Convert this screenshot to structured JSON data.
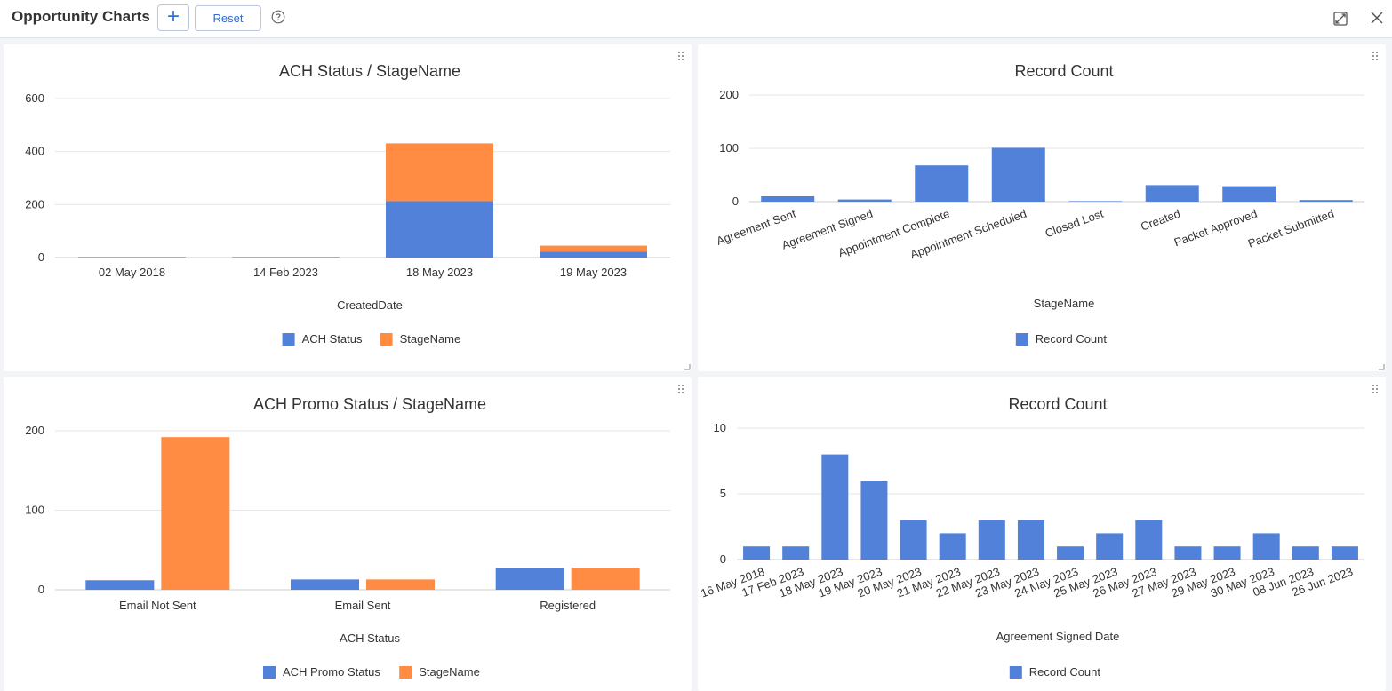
{
  "header": {
    "title": "Opportunity Charts",
    "add_label": "+",
    "reset_label": "Reset",
    "help_icon": "help-circle-icon",
    "expand_icon": "expand-icon",
    "close_icon": "close-icon"
  },
  "colors": {
    "blue": "#5181d8",
    "orange": "#ff8c42",
    "grid": "#e6e6e6",
    "text": "#333333"
  },
  "chart_data": [
    {
      "type": "bar",
      "stacked": true,
      "title": "ACH Status / StageName",
      "xlabel": "CreatedDate",
      "ylabel": "",
      "ylim": [
        0,
        600
      ],
      "yticks": [
        0,
        200,
        400,
        600
      ],
      "categories": [
        "02 May 2018",
        "14 Feb 2023",
        "18 May 2023",
        "19 May 2023"
      ],
      "series": [
        {
          "name": "ACH Status",
          "values": [
            1,
            1,
            213,
            22
          ]
        },
        {
          "name": "StageName",
          "values": [
            2,
            2,
            218,
            23
          ]
        }
      ],
      "legend": "bottom"
    },
    {
      "type": "bar",
      "title": "Record Count",
      "xlabel": "StageName",
      "ylabel": "",
      "ylim": [
        0,
        200
      ],
      "yticks": [
        0,
        100,
        200
      ],
      "categories": [
        "Agreement Sent",
        "Agreement Signed",
        "Appointment Complete",
        "Appointment Scheduled",
        "Closed Lost",
        "Created",
        "Packet Approved",
        "Packet Submitted"
      ],
      "series": [
        {
          "name": "Record Count",
          "values": [
            10,
            4,
            68,
            101,
            1,
            31,
            29,
            3
          ]
        }
      ],
      "rotated_labels": true,
      "legend": "bottom"
    },
    {
      "type": "bar",
      "title": "ACH Promo Status / StageName",
      "xlabel": "ACH Status",
      "ylabel": "",
      "ylim": [
        0,
        200
      ],
      "yticks": [
        0,
        100,
        200
      ],
      "categories": [
        "Email Not Sent",
        "Email Sent",
        "Registered"
      ],
      "series": [
        {
          "name": "ACH Promo Status",
          "values": [
            12,
            13,
            27
          ]
        },
        {
          "name": "StageName",
          "values": [
            192,
            13,
            28
          ]
        }
      ],
      "legend": "bottom"
    },
    {
      "type": "bar",
      "title": "Record Count",
      "xlabel": "Agreement Signed Date",
      "ylabel": "",
      "ylim": [
        0,
        10
      ],
      "yticks": [
        0,
        5,
        10
      ],
      "categories": [
        "16 May 2018",
        "17 Feb 2023",
        "18 May 2023",
        "19 May 2023",
        "20 May 2023",
        "21 May 2023",
        "22 May 2023",
        "23 May 2023",
        "24 May 2023",
        "25 May 2023",
        "26 May 2023",
        "27 May 2023",
        "29 May 2023",
        "30 May 2023",
        "08 Jun 2023",
        "26 Jun 2023"
      ],
      "series": [
        {
          "name": "Record Count",
          "values": [
            1,
            1,
            8,
            6,
            3,
            2,
            3,
            3,
            1,
            2,
            3,
            1,
            1,
            2,
            1,
            1
          ]
        }
      ],
      "rotated_labels": true,
      "legend": "bottom"
    }
  ]
}
